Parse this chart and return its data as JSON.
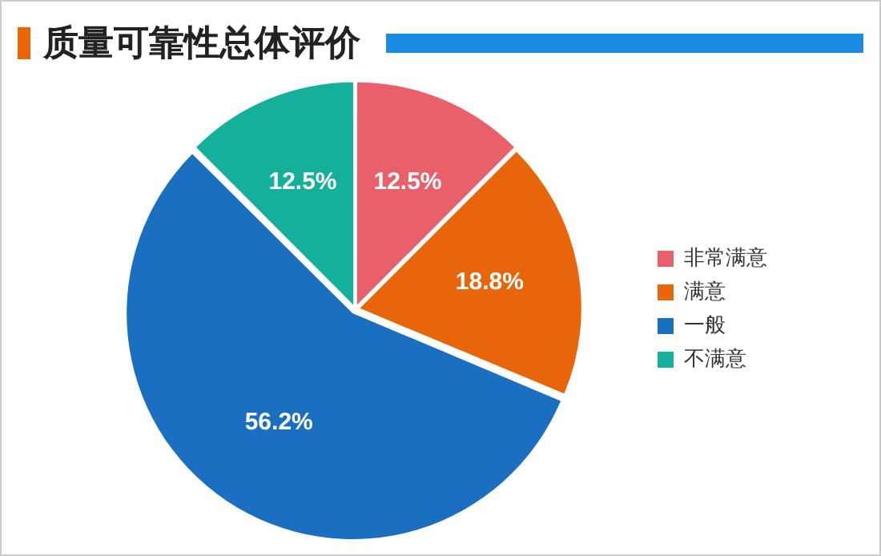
{
  "chart_data": {
    "type": "pie",
    "title": "质量可靠性总体评价",
    "categories": [
      "非常满意",
      "满意",
      "一般",
      "不满意"
    ],
    "values": [
      12.5,
      18.8,
      56.2,
      12.5
    ],
    "colors": [
      "#e8606a",
      "#e8650a",
      "#1a6fc0",
      "#15b09a"
    ],
    "value_labels": [
      "12.5%",
      "18.8%",
      "56.2%",
      "12.5%"
    ],
    "legend": "right"
  }
}
